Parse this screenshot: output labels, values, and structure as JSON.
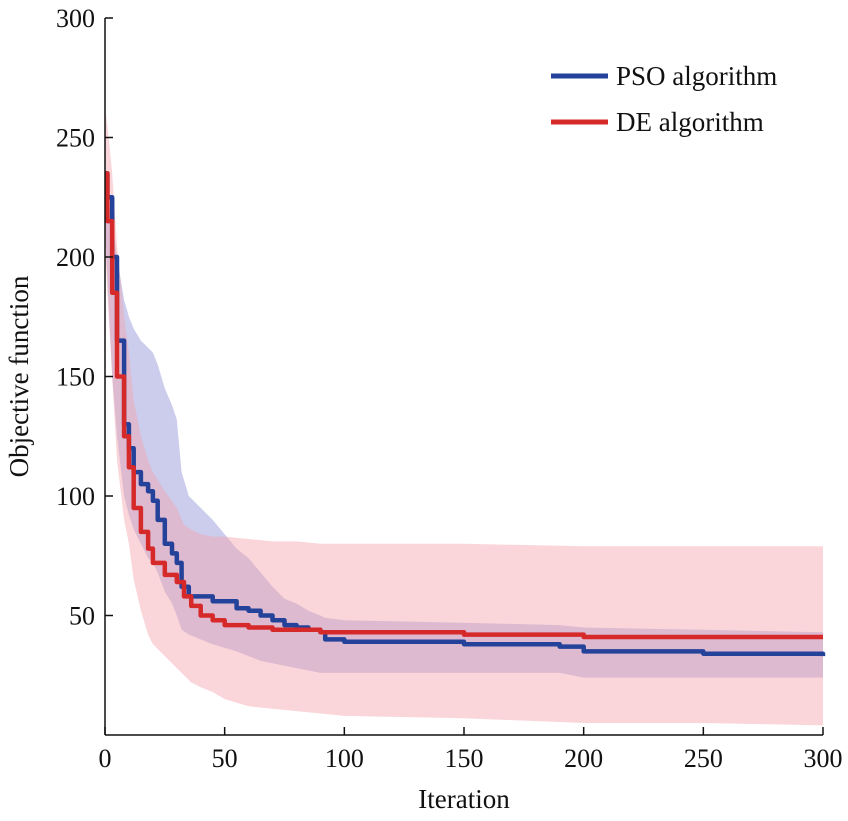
{
  "chart_data": {
    "type": "line",
    "xlabel": "Iteration",
    "ylabel": "Objective function",
    "xlim": [
      0,
      300
    ],
    "ylim": [
      0,
      300
    ],
    "x_ticks": [
      0,
      50,
      100,
      150,
      200,
      250,
      300
    ],
    "y_ticks": [
      50,
      100,
      150,
      200,
      250,
      300
    ],
    "x_tick_labels": [
      "0",
      "50",
      "100",
      "150",
      "200",
      "250",
      "300"
    ],
    "y_tick_labels": [
      "50",
      "100",
      "150",
      "200",
      "250",
      "300"
    ],
    "legend_position": "top-right",
    "grid": false,
    "series": [
      {
        "name": "PSO algorithm",
        "color": "#24429a",
        "band_color": "#8f8fd6",
        "x": [
          0,
          1,
          3,
          5,
          8,
          10,
          12,
          15,
          18,
          20,
          22,
          25,
          28,
          30,
          32,
          35,
          45,
          55,
          60,
          65,
          70,
          75,
          80,
          85,
          90,
          92,
          100,
          150,
          190,
          200,
          250,
          300
        ],
        "y": [
          235,
          225,
          200,
          165,
          130,
          120,
          110,
          105,
          102,
          98,
          90,
          80,
          76,
          72,
          62,
          58,
          56,
          53,
          52,
          50,
          48,
          46,
          45,
          44,
          43,
          40,
          39,
          38,
          37,
          35,
          34,
          33
        ],
        "upper": [
          230,
          225,
          215,
          200,
          182,
          175,
          170,
          165,
          162,
          160,
          155,
          145,
          138,
          132,
          110,
          100,
          90,
          78,
          74,
          68,
          62,
          57,
          55,
          52,
          50,
          49,
          48,
          47,
          46,
          45,
          44,
          43
        ],
        "lower": [
          215,
          190,
          150,
          125,
          100,
          92,
          86,
          80,
          74,
          72,
          68,
          60,
          55,
          50,
          44,
          42,
          38,
          35,
          33,
          31,
          30,
          29,
          28,
          27,
          26,
          26,
          26,
          26,
          26,
          24,
          24,
          24
        ]
      },
      {
        "name": "DE algorithm",
        "color": "#d62a2a",
        "band_color": "#f3a3ad",
        "x": [
          0,
          1,
          3,
          5,
          8,
          10,
          12,
          15,
          18,
          20,
          25,
          30,
          33,
          36,
          40,
          45,
          50,
          60,
          70,
          80,
          90,
          100,
          150,
          200,
          250,
          300
        ],
        "y": [
          235,
          215,
          185,
          150,
          125,
          112,
          95,
          85,
          78,
          72,
          67,
          64,
          58,
          54,
          50,
          48,
          46,
          45,
          44,
          44,
          43,
          43,
          42,
          41,
          41,
          41
        ],
        "upper": [
          263,
          255,
          235,
          205,
          175,
          160,
          140,
          125,
          115,
          110,
          102,
          95,
          88,
          86,
          84,
          83,
          83,
          82,
          81,
          81,
          80,
          80,
          80,
          79,
          79,
          79
        ],
        "lower": [
          205,
          185,
          150,
          115,
          90,
          80,
          65,
          52,
          42,
          38,
          33,
          28,
          25,
          22,
          20,
          18,
          15,
          12,
          11,
          10,
          9,
          8,
          7,
          5,
          5,
          4
        ]
      }
    ]
  }
}
